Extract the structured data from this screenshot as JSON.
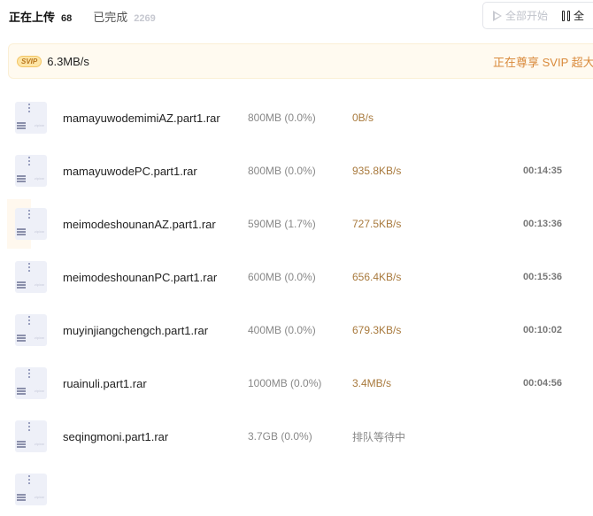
{
  "tabs": [
    {
      "label": "正在上传",
      "count": "68",
      "active": true
    },
    {
      "label": "已完成",
      "count": "2269",
      "active": false
    }
  ],
  "toolbar": {
    "start_all": "全部开始",
    "pause_all": "全"
  },
  "banner": {
    "badge": "SVIP",
    "speed": "6.3MB/s",
    "promo": "正在尊享 SVIP 超大"
  },
  "files": [
    {
      "name": "mamayuwodemimiAZ.part1.rar",
      "size": "800MB (0.0%)",
      "speed": "0B/s",
      "eta": "",
      "progress": 0.0
    },
    {
      "name": "mamayuwodePC.part1.rar",
      "size": "800MB (0.0%)",
      "speed": "935.8KB/s",
      "eta": "00:14:35",
      "progress": 0.0
    },
    {
      "name": "meimodeshounanAZ.part1.rar",
      "size": "590MB (1.7%)",
      "speed": "727.5KB/s",
      "eta": "00:13:36",
      "progress": 1.7
    },
    {
      "name": "meimodeshounanPC.part1.rar",
      "size": "600MB (0.0%)",
      "speed": "656.4KB/s",
      "eta": "00:15:36",
      "progress": 0.0
    },
    {
      "name": "muyinjiangchengch.part1.rar",
      "size": "400MB (0.0%)",
      "speed": "679.3KB/s",
      "eta": "00:10:02",
      "progress": 0.0
    },
    {
      "name": "ruainuli.part1.rar",
      "size": "1000MB (0.0%)",
      "speed": "3.4MB/s",
      "eta": "00:04:56",
      "progress": 0.0
    },
    {
      "name": "seqingmoni.part1.rar",
      "size": "3.7GB (0.0%)",
      "speed": "排队等待中",
      "eta": "",
      "progress": 0.0
    },
    {
      "name": "",
      "size": "",
      "speed": "",
      "eta": "",
      "progress": 0.0
    }
  ]
}
